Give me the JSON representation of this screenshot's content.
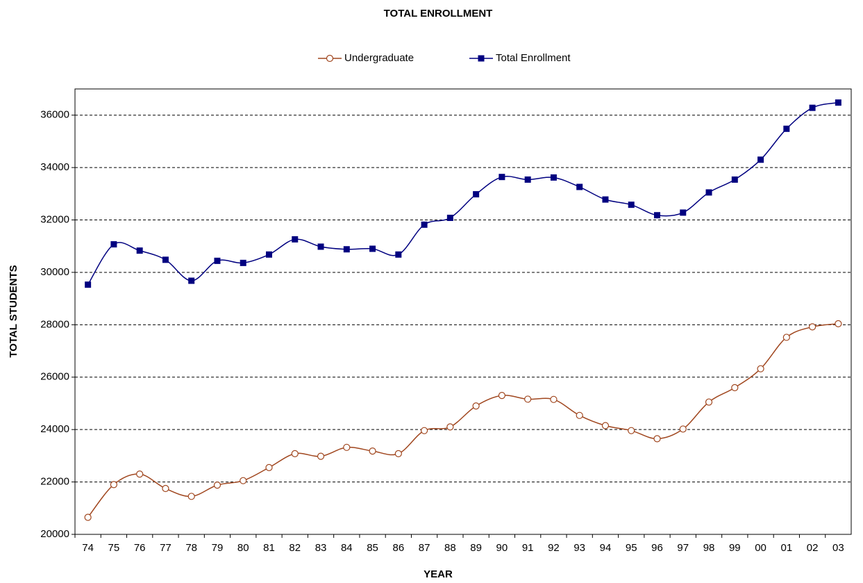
{
  "chart_data": {
    "type": "line",
    "title": "TOTAL ENROLLMENT",
    "x_label": "YEAR",
    "y_label": "TOTAL STUDENTS",
    "categories": [
      "74",
      "75",
      "76",
      "77",
      "78",
      "79",
      "80",
      "81",
      "82",
      "83",
      "84",
      "85",
      "86",
      "87",
      "88",
      "89",
      "90",
      "91",
      "92",
      "93",
      "94",
      "95",
      "96",
      "97",
      "98",
      "99",
      "00",
      "01",
      "02",
      "03"
    ],
    "series": [
      {
        "name": "Undergraduate",
        "color": "#a0461e",
        "marker": "circle",
        "values": [
          20650,
          21900,
          22300,
          21750,
          21450,
          21880,
          22050,
          22550,
          23080,
          22980,
          23320,
          23180,
          23080,
          23960,
          24100,
          24900,
          25300,
          25160,
          25150,
          24540,
          24150,
          23960,
          23650,
          24020,
          25050,
          25600,
          26320,
          27520,
          27920,
          28040
        ]
      },
      {
        "name": "Total Enrollment",
        "color": "#000080",
        "marker": "square",
        "values": [
          29530,
          31070,
          30830,
          30480,
          29680,
          30440,
          30360,
          30680,
          31260,
          30980,
          30880,
          30900,
          30680,
          31820,
          32080,
          32980,
          33640,
          33540,
          33620,
          33260,
          32780,
          32580,
          32180,
          32280,
          33050,
          33540,
          34300,
          35480,
          36280,
          36480
        ]
      }
    ],
    "ylim": [
      20000,
      37000
    ],
    "yticks": [
      20000,
      22000,
      24000,
      26000,
      28000,
      30000,
      32000,
      34000,
      36000
    ],
    "grid": true,
    "legend": "top",
    "smooth": true
  }
}
